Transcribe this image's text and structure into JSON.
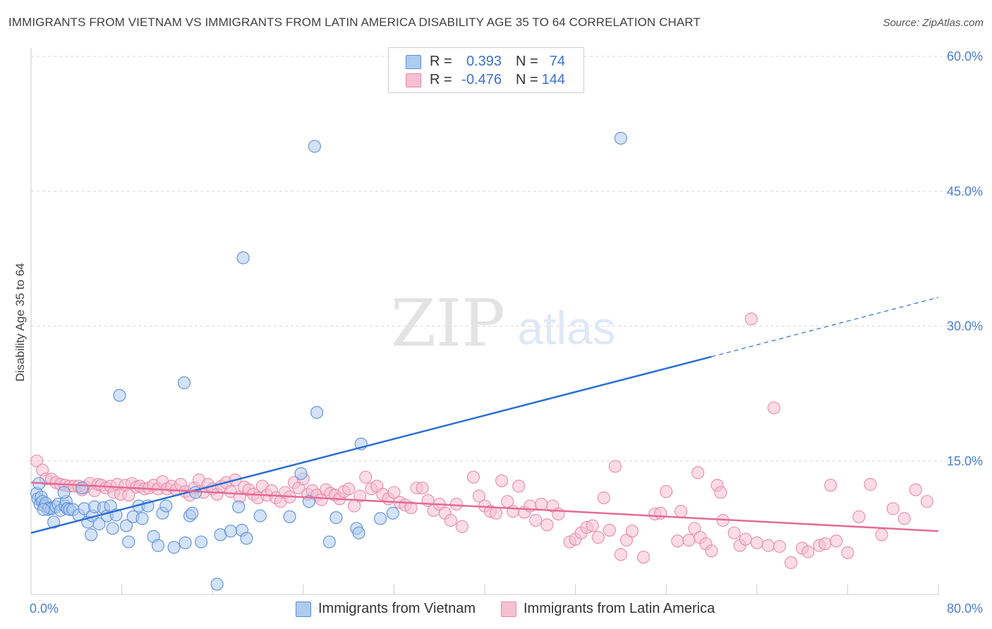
{
  "header": {
    "title": "IMMIGRANTS FROM VIETNAM VS IMMIGRANTS FROM LATIN AMERICA DISABILITY AGE 35 TO 64 CORRELATION CHART",
    "source": "Source: ZipAtlas.com"
  },
  "watermark": {
    "zip": "ZIP",
    "atlas": "atlas"
  },
  "legend_top": {
    "rows": [
      {
        "r_label": "R =",
        "r_value": "0.393",
        "n_label": "N =",
        "n_value": "74"
      },
      {
        "r_label": "R =",
        "r_value": "-0.476",
        "n_label": "N =",
        "n_value": "144"
      }
    ]
  },
  "legend_bottom": {
    "items": [
      {
        "label": "Immigrants from Vietnam"
      },
      {
        "label": "Immigrants from Latin America"
      }
    ]
  },
  "colors": {
    "vietnam_fill": "#aecbf0",
    "vietnam_stroke": "#5b8fd8",
    "vietnam_line": "#2b6fd3",
    "latin_fill": "#f7c0d1",
    "latin_stroke": "#e88aa9",
    "latin_line": "#e26b96",
    "grid": "#d9d9d9",
    "axis_text": "#4a7fd4"
  },
  "chart_data": {
    "type": "scatter",
    "title": "IMMIGRANTS FROM VIETNAM VS IMMIGRANTS FROM LATIN AMERICA DISABILITY AGE 35 TO 64 CORRELATION CHART",
    "xlabel": "",
    "ylabel": "Disability Age 35 to 64",
    "xlim": [
      0,
      80
    ],
    "ylim": [
      0,
      60
    ],
    "x_tick_labels": [
      "0.0%",
      "80.0%"
    ],
    "y_ticks": [
      15,
      30,
      45,
      60
    ],
    "y_tick_labels": [
      "15.0%",
      "30.0%",
      "45.0%",
      "60.0%"
    ],
    "grid": true,
    "legend": "bottom",
    "series": [
      {
        "name": "Immigrants from Vietnam",
        "R": 0.393,
        "N": 74,
        "trend": {
          "x0": 0,
          "y0": 7.0,
          "x1": 60,
          "y1": 26.6,
          "dashed_to_x": 80,
          "dashed_to_y": 33.2
        },
        "points": [
          [
            0.5,
            11.4
          ],
          [
            0.6,
            10.8
          ],
          [
            0.8,
            10.2
          ],
          [
            0.9,
            11.0
          ],
          [
            1.0,
            10.5
          ],
          [
            1.2,
            10.0
          ],
          [
            1.3,
            10.3
          ],
          [
            1.5,
            9.6
          ],
          [
            1.6,
            9.8
          ],
          [
            1.8,
            9.7
          ],
          [
            2.0,
            8.2
          ],
          [
            2.2,
            9.9
          ],
          [
            2.4,
            10.2
          ],
          [
            2.6,
            9.5
          ],
          [
            3.0,
            10.0
          ],
          [
            3.1,
            10.5
          ],
          [
            3.2,
            9.7
          ],
          [
            3.4,
            9.6
          ],
          [
            3.7,
            9.6
          ],
          [
            4.2,
            9.0
          ],
          [
            4.5,
            12.0
          ],
          [
            4.7,
            9.7
          ],
          [
            5.0,
            8.2
          ],
          [
            5.3,
            6.8
          ],
          [
            5.4,
            8.9
          ],
          [
            5.6,
            9.9
          ],
          [
            6.0,
            8.0
          ],
          [
            6.4,
            9.8
          ],
          [
            6.7,
            8.9
          ],
          [
            7.0,
            10.0
          ],
          [
            7.2,
            7.5
          ],
          [
            7.5,
            9.0
          ],
          [
            7.8,
            22.3
          ],
          [
            8.4,
            7.8
          ],
          [
            8.6,
            6.0
          ],
          [
            9.0,
            8.8
          ],
          [
            9.5,
            10.0
          ],
          [
            9.8,
            8.6
          ],
          [
            10.3,
            10.0
          ],
          [
            10.8,
            6.6
          ],
          [
            11.2,
            5.6
          ],
          [
            11.6,
            9.2
          ],
          [
            11.9,
            10.0
          ],
          [
            12.6,
            5.4
          ],
          [
            13.5,
            23.7
          ],
          [
            13.6,
            5.9
          ],
          [
            14.0,
            8.9
          ],
          [
            14.2,
            9.2
          ],
          [
            14.5,
            11.5
          ],
          [
            15.0,
            6.0
          ],
          [
            16.4,
            1.3
          ],
          [
            16.7,
            6.8
          ],
          [
            17.6,
            7.2
          ],
          [
            18.3,
            9.9
          ],
          [
            18.6,
            7.3
          ],
          [
            18.7,
            37.6
          ],
          [
            19.0,
            6.4
          ],
          [
            20.2,
            8.9
          ],
          [
            22.8,
            8.8
          ],
          [
            23.8,
            13.6
          ],
          [
            24.5,
            10.5
          ],
          [
            25.0,
            50.0
          ],
          [
            25.2,
            20.4
          ],
          [
            26.3,
            6.0
          ],
          [
            26.9,
            8.7
          ],
          [
            28.7,
            7.5
          ],
          [
            28.9,
            7.0
          ],
          [
            29.1,
            16.9
          ],
          [
            30.8,
            8.6
          ],
          [
            31.9,
            9.2
          ],
          [
            52.0,
            50.9
          ],
          [
            0.7,
            12.5
          ],
          [
            1.1,
            9.6
          ],
          [
            2.9,
            11.5
          ]
        ]
      },
      {
        "name": "Immigrants from Latin America",
        "R": -0.476,
        "N": 144,
        "trend": {
          "x0": 0,
          "y0": 12.6,
          "x1": 80,
          "y1": 7.2
        },
        "points": [
          [
            0.5,
            15.0
          ],
          [
            1.0,
            14.0
          ],
          [
            1.3,
            13.0
          ],
          [
            1.8,
            13.0
          ],
          [
            2.2,
            12.6
          ],
          [
            2.6,
            12.4
          ],
          [
            3.0,
            12.3
          ],
          [
            3.4,
            12.2
          ],
          [
            3.8,
            12.2
          ],
          [
            4.2,
            12.2
          ],
          [
            4.5,
            11.8
          ],
          [
            4.8,
            12.1
          ],
          [
            5.2,
            12.5
          ],
          [
            5.6,
            11.7
          ],
          [
            5.9,
            12.4
          ],
          [
            6.2,
            12.3
          ],
          [
            6.6,
            12.0
          ],
          [
            7.0,
            12.2
          ],
          [
            7.3,
            11.5
          ],
          [
            7.6,
            12.4
          ],
          [
            7.9,
            11.3
          ],
          [
            8.3,
            12.3
          ],
          [
            8.6,
            11.2
          ],
          [
            8.9,
            12.5
          ],
          [
            9.3,
            12.1
          ],
          [
            9.6,
            12.2
          ],
          [
            10.0,
            11.9
          ],
          [
            10.4,
            12.0
          ],
          [
            10.8,
            12.3
          ],
          [
            11.2,
            11.9
          ],
          [
            11.6,
            12.7
          ],
          [
            12.0,
            11.9
          ],
          [
            12.4,
            12.2
          ],
          [
            12.8,
            11.8
          ],
          [
            13.2,
            12.4
          ],
          [
            13.6,
            11.6
          ],
          [
            14.0,
            11.2
          ],
          [
            14.4,
            12.0
          ],
          [
            14.8,
            12.9
          ],
          [
            15.2,
            11.5
          ],
          [
            15.6,
            12.4
          ],
          [
            16.0,
            11.9
          ],
          [
            16.4,
            11.3
          ],
          [
            16.8,
            12.2
          ],
          [
            17.2,
            12.6
          ],
          [
            17.6,
            11.6
          ],
          [
            18.0,
            12.9
          ],
          [
            18.4,
            11.0
          ],
          [
            18.8,
            12.1
          ],
          [
            19.2,
            11.8
          ],
          [
            19.6,
            11.3
          ],
          [
            20.0,
            10.9
          ],
          [
            20.4,
            12.2
          ],
          [
            20.8,
            11.2
          ],
          [
            21.2,
            11.7
          ],
          [
            21.6,
            10.9
          ],
          [
            22.0,
            10.5
          ],
          [
            22.4,
            11.5
          ],
          [
            22.8,
            11.0
          ],
          [
            23.2,
            12.6
          ],
          [
            23.6,
            12.0
          ],
          [
            24.0,
            13.0
          ],
          [
            24.4,
            11.3
          ],
          [
            24.8,
            11.7
          ],
          [
            25.2,
            11.2
          ],
          [
            25.6,
            10.7
          ],
          [
            26.0,
            11.8
          ],
          [
            26.4,
            11.4
          ],
          [
            26.8,
            11.2
          ],
          [
            27.2,
            10.8
          ],
          [
            27.6,
            11.6
          ],
          [
            28.0,
            11.9
          ],
          [
            28.5,
            10.0
          ],
          [
            29.0,
            11.1
          ],
          [
            29.5,
            13.2
          ],
          [
            30.0,
            11.9
          ],
          [
            30.5,
            12.2
          ],
          [
            31.0,
            11.3
          ],
          [
            31.5,
            10.8
          ],
          [
            32.0,
            11.5
          ],
          [
            32.5,
            10.4
          ],
          [
            33.0,
            10.1
          ],
          [
            33.5,
            9.8
          ],
          [
            34.0,
            12.0
          ],
          [
            34.5,
            12.0
          ],
          [
            35.0,
            10.6
          ],
          [
            35.5,
            9.5
          ],
          [
            36.0,
            10.2
          ],
          [
            36.5,
            9.2
          ],
          [
            37.0,
            8.4
          ],
          [
            37.5,
            10.2
          ],
          [
            38.0,
            7.7
          ],
          [
            39.0,
            13.2
          ],
          [
            39.5,
            11.1
          ],
          [
            40.0,
            10.0
          ],
          [
            40.5,
            9.4
          ],
          [
            41.0,
            9.2
          ],
          [
            41.5,
            12.8
          ],
          [
            42.0,
            10.5
          ],
          [
            42.5,
            9.4
          ],
          [
            43.0,
            12.2
          ],
          [
            43.5,
            9.3
          ],
          [
            44.0,
            10.0
          ],
          [
            44.5,
            8.4
          ],
          [
            45.0,
            10.2
          ],
          [
            45.5,
            7.9
          ],
          [
            46.0,
            10.0
          ],
          [
            46.5,
            9.1
          ],
          [
            47.5,
            6.0
          ],
          [
            48.0,
            6.3
          ],
          [
            48.5,
            7.0
          ],
          [
            49.0,
            7.6
          ],
          [
            49.5,
            7.8
          ],
          [
            50.0,
            6.5
          ],
          [
            50.5,
            10.9
          ],
          [
            51.0,
            7.3
          ],
          [
            51.5,
            14.4
          ],
          [
            52.0,
            4.6
          ],
          [
            52.5,
            6.2
          ],
          [
            53.0,
            7.2
          ],
          [
            54.0,
            4.3
          ],
          [
            55.0,
            9.1
          ],
          [
            55.5,
            9.2
          ],
          [
            56.0,
            11.6
          ],
          [
            57.0,
            6.1
          ],
          [
            58.0,
            6.2
          ],
          [
            58.5,
            7.5
          ],
          [
            59.0,
            6.5
          ],
          [
            59.5,
            5.8
          ],
          [
            60.0,
            5.0
          ],
          [
            60.5,
            12.3
          ],
          [
            61.0,
            8.4
          ],
          [
            62.0,
            7.0
          ],
          [
            62.5,
            5.6
          ],
          [
            63.0,
            6.3
          ],
          [
            64.0,
            5.9
          ],
          [
            65.0,
            5.6
          ],
          [
            66.0,
            5.5
          ],
          [
            67.0,
            3.7
          ],
          [
            68.0,
            5.3
          ],
          [
            63.5,
            30.8
          ],
          [
            65.5,
            20.9
          ],
          [
            68.5,
            4.9
          ],
          [
            69.5,
            5.6
          ],
          [
            70.0,
            5.8
          ],
          [
            71.0,
            6.1
          ],
          [
            72.0,
            4.8
          ],
          [
            73.0,
            8.8
          ],
          [
            74.0,
            12.4
          ],
          [
            75.0,
            6.8
          ],
          [
            76.0,
            9.7
          ],
          [
            77.0,
            8.6
          ],
          [
            78.0,
            11.8
          ],
          [
            79.0,
            10.5
          ],
          [
            60.8,
            11.5
          ],
          [
            70.5,
            12.3
          ],
          [
            58.8,
            13.7
          ],
          [
            57.3,
            9.4
          ]
        ]
      }
    ]
  }
}
